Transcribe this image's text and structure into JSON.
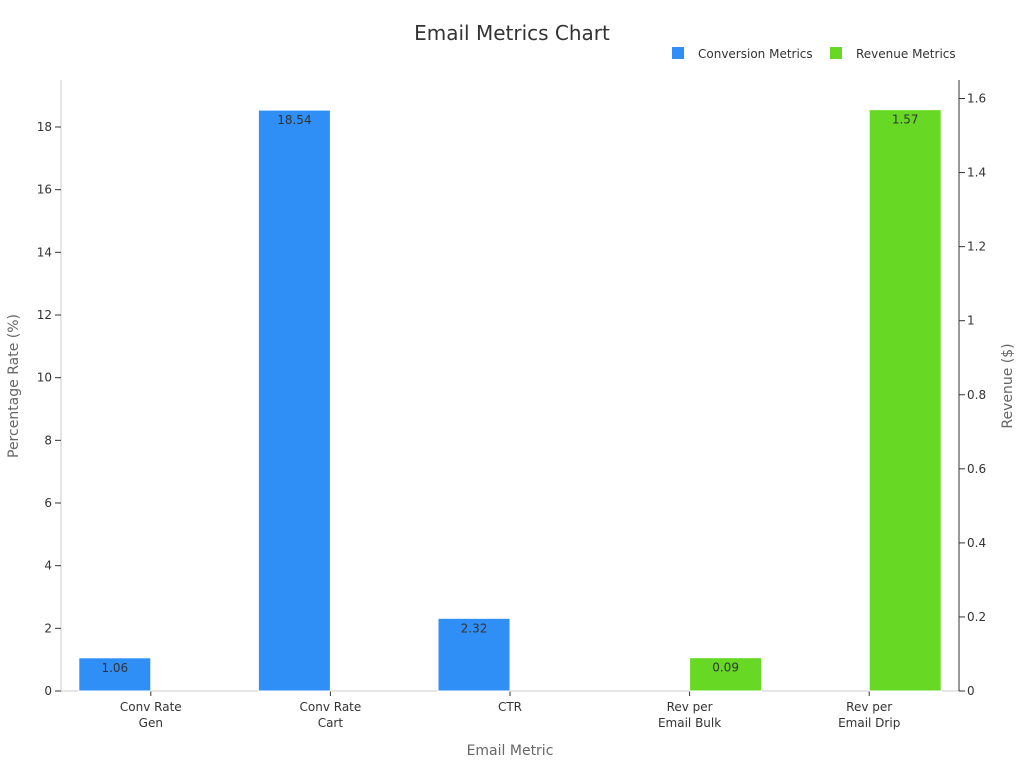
{
  "chart_data": {
    "type": "bar",
    "title": "Email Metrics Chart",
    "xlabel": "Email Metric",
    "ylabel": "Percentage Rate (%)",
    "y2label": "Revenue ($)",
    "categories": [
      [
        "Conv Rate",
        "Gen"
      ],
      [
        "Conv Rate",
        "Cart"
      ],
      [
        "CTR"
      ],
      [
        "Rev per",
        "Email Bulk"
      ],
      [
        "Rev per",
        "Email Drip"
      ]
    ],
    "ylim": [
      0,
      19.5
    ],
    "y_ticks": [
      0,
      2,
      4,
      6,
      8,
      10,
      12,
      14,
      16,
      18
    ],
    "y2lim": [
      0,
      1.65
    ],
    "y2_ticks": [
      "0",
      "0.2",
      "0.4",
      "0.6",
      "0.8",
      "1",
      "1.2",
      "1.4",
      "1.6"
    ],
    "legend_position": "top-right",
    "series": [
      {
        "name": "Conversion Metrics",
        "axis": "left",
        "color": "#2f8ff7",
        "values": [
          1.06,
          18.54,
          2.32,
          null,
          null
        ],
        "labels": [
          "1.06",
          "18.54",
          "2.32",
          "",
          ""
        ]
      },
      {
        "name": "Revenue Metrics",
        "axis": "right",
        "color": "#67d925",
        "values": [
          null,
          null,
          null,
          0.09,
          1.57
        ],
        "labels": [
          "",
          "",
          "",
          "0.09",
          "1.57"
        ]
      }
    ]
  }
}
